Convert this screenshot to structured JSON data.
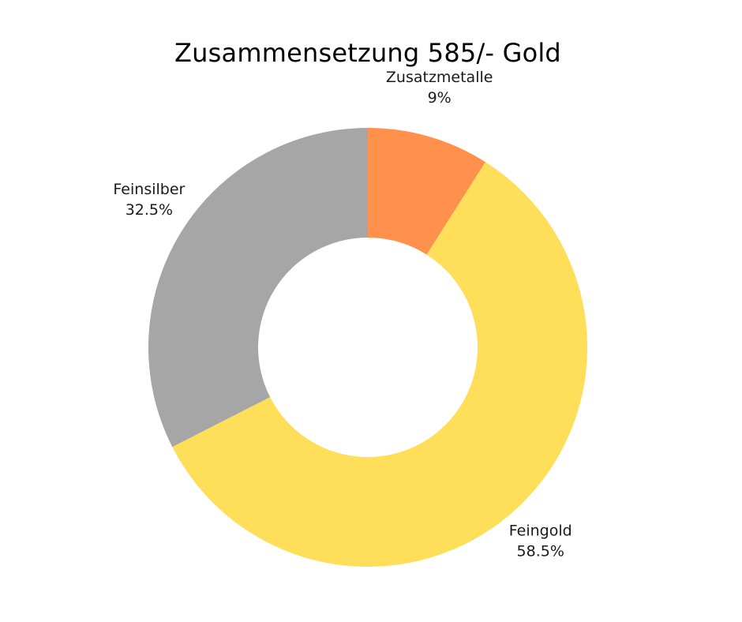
{
  "chart_data": {
    "type": "pie",
    "variant": "donut",
    "title": "Zusammensetzung 585/- Gold",
    "start": "12 o'clock, clockwise",
    "slices": [
      {
        "label": "Zusatzmetalle",
        "value": 9,
        "value_label": "9%",
        "color": "#FF914D"
      },
      {
        "label": "Feingold",
        "value": 58.5,
        "value_label": "58.5%",
        "color": "#FFDE59"
      },
      {
        "label": "Feinsilber",
        "value": 32.5,
        "value_label": "32.5%",
        "color": "#A6A6A6"
      }
    ]
  }
}
